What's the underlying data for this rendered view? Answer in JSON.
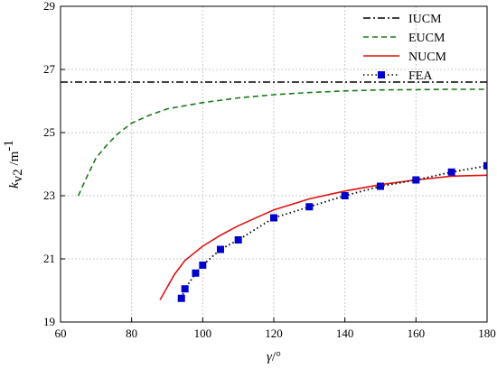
{
  "chart_data": {
    "type": "line",
    "xlabel_var": "γ",
    "xlabel_unit": "/°",
    "ylabel_var": "k",
    "ylabel_sub": "v2",
    "ylabel_unit": " /m",
    "ylabel_sup": "-1",
    "xlim": [
      60,
      180
    ],
    "ylim": [
      19,
      29
    ],
    "xticks": [
      60,
      80,
      100,
      120,
      140,
      160,
      180
    ],
    "yticks": [
      19,
      21,
      23,
      25,
      27,
      29
    ],
    "grid": "dotted",
    "legend_position": "top-right",
    "series": [
      {
        "name": "IUCM",
        "color": "#000000",
        "dash": "dashdot",
        "x": [
          60,
          180
        ],
        "y": [
          26.6,
          26.6
        ]
      },
      {
        "name": "EUCM",
        "color": "#1a7a1a",
        "dash": "dashed",
        "x": [
          65,
          67,
          70,
          73,
          76,
          80,
          85,
          90,
          95,
          100,
          110,
          120,
          130,
          140,
          150,
          160,
          170,
          180
        ],
        "y": [
          23.0,
          23.5,
          24.2,
          24.6,
          24.95,
          25.3,
          25.55,
          25.75,
          25.85,
          25.95,
          26.1,
          26.2,
          26.27,
          26.32,
          26.35,
          26.36,
          26.37,
          26.37
        ]
      },
      {
        "name": "NUCM",
        "color": "#e01010",
        "dash": "solid",
        "x": [
          88,
          90,
          92,
          95,
          100,
          105,
          110,
          120,
          130,
          140,
          150,
          160,
          170,
          180
        ],
        "y": [
          19.7,
          20.1,
          20.5,
          20.95,
          21.4,
          21.75,
          22.05,
          22.55,
          22.9,
          23.15,
          23.35,
          23.5,
          23.62,
          23.65
        ]
      },
      {
        "name": "FEA",
        "color": "#0000cc",
        "dash": "dotted",
        "x": [
          94,
          95,
          98,
          100,
          105,
          110,
          120,
          130,
          140,
          150,
          160,
          170,
          180
        ],
        "y": [
          19.75,
          20.05,
          20.55,
          20.8,
          21.3,
          21.6,
          22.3,
          22.65,
          23.0,
          23.3,
          23.5,
          23.75,
          23.95
        ]
      }
    ]
  }
}
